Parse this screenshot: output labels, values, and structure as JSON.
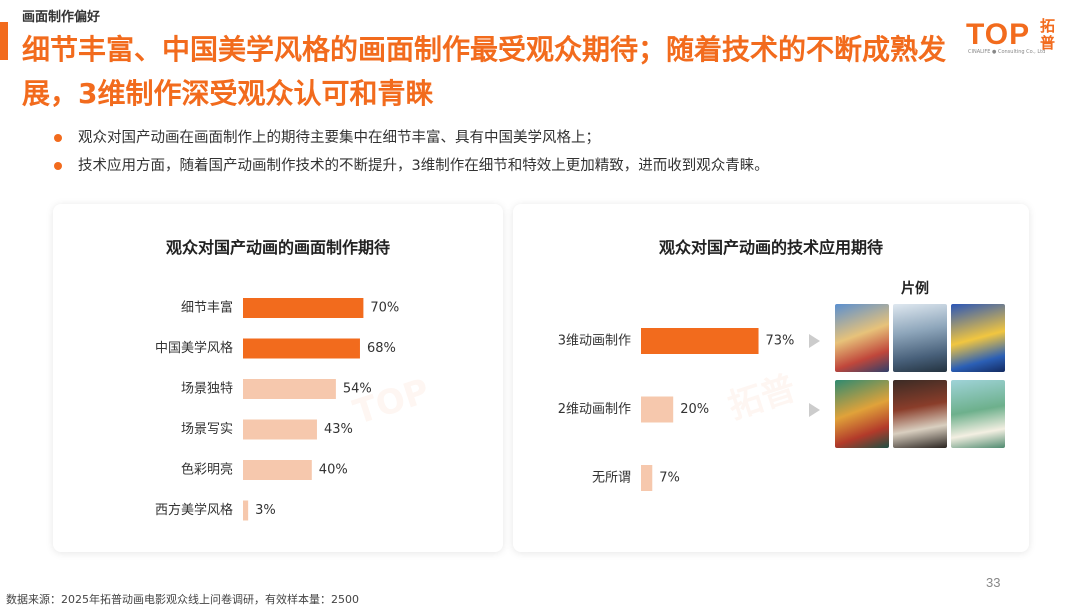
{
  "header": {
    "section_label": "画面制作偏好",
    "headline_line1": "细节丰富、中国美学风格的画面制作最受观众期待；随着技术的不断成熟发",
    "headline_line2": "展，3维制作深受观众认可和青睐"
  },
  "logo": {
    "text": "TOP",
    "tagline": "CINALIFE ● Consulting Co., Ltd",
    "cn_line1": "拓",
    "cn_line2": "普"
  },
  "bullets": [
    "观众对国产动画在画面制作上的期待主要集中在细节丰富、具有中国美学风格上；",
    "技术应用方面，随着国产动画制作技术的不断提升，3维制作在细节和特效上更加精致，进而收到观众青睐。"
  ],
  "chart_data": [
    {
      "type": "bar",
      "orientation": "horizontal",
      "title": "观众对国产动画的画面制作期待",
      "categories": [
        "细节丰富",
        "中国美学风格",
        "场景独特",
        "场景写实",
        "色彩明亮",
        "西方美学风格"
      ],
      "values": [
        70,
        68,
        54,
        43,
        40,
        3
      ],
      "labels": [
        "70%",
        "68%",
        "54%",
        "43%",
        "40%",
        "3%"
      ],
      "unit": "%",
      "xlim": [
        0,
        100
      ],
      "colors": [
        "#f26b1d",
        "#f26b1d",
        "#f6c8ad",
        "#f6c8ad",
        "#f6c8ad",
        "#f6c8ad"
      ],
      "grid": false
    },
    {
      "type": "bar",
      "orientation": "horizontal",
      "title": "观众对国产动画的技术应用期待",
      "categories": [
        "3维动画制作",
        "2维动画制作",
        "无所谓"
      ],
      "values": [
        73,
        20,
        7
      ],
      "labels": [
        "73%",
        "20%",
        "7%"
      ],
      "unit": "%",
      "xlim": [
        0,
        100
      ],
      "colors": [
        "#f26b1d",
        "#f6c8ad",
        "#f6c8ad"
      ],
      "grid": false
    }
  ],
  "examples": {
    "title": "片例",
    "posters_3d": [
      "poster-3d-1",
      "poster-3d-2",
      "poster-3d-3"
    ],
    "posters_2d": [
      "poster-2d-1",
      "poster-2d-2",
      "poster-2d-3"
    ]
  },
  "colors": {
    "accent": "#f26b1d",
    "light_accent": "#f6c8ad"
  },
  "icons": {
    "bullet": "orange-dot-icon",
    "pointer": "gray-triangle-arrow-icon"
  },
  "footer": {
    "source": "数据来源：2025年拓普动画电影观众线上问卷调研，有效样本量：2500",
    "page_number": "33"
  }
}
